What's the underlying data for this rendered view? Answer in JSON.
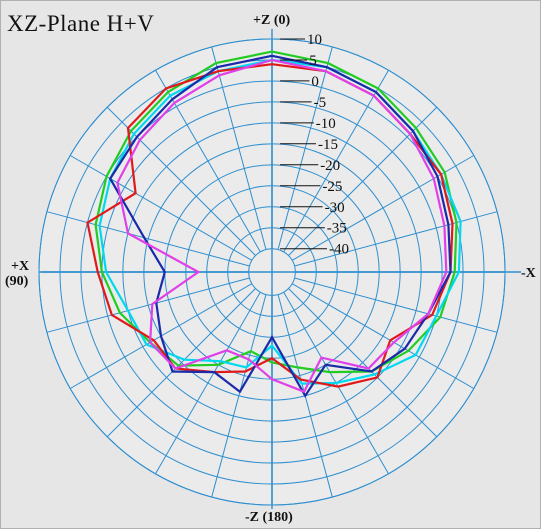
{
  "title": "XZ-Plane   H+V",
  "axis_labels": {
    "top": "+Z (0)",
    "bottom": "-Z (180)",
    "left_line1": "+X",
    "left_line2": "(90)",
    "right": "-X"
  },
  "colors": {
    "background": "#e6e6e6",
    "grid": "#2f8fd0",
    "axis": "#2f8fd0",
    "tick_text": "#111111"
  },
  "chart_data": {
    "type": "line",
    "subtype": "polar",
    "title": "XZ-Plane   H+V",
    "radial_unit": "dB",
    "radial_range": [
      -40,
      10
    ],
    "radial_ticks": [
      10,
      5,
      0,
      -5,
      -10,
      -15,
      -20,
      -25,
      -30,
      -35,
      -40
    ],
    "radial_tick_labels": [
      "10",
      "5",
      "0",
      "-5",
      "-10",
      "-15",
      "-20",
      "-25",
      "-30",
      "-35",
      "-40"
    ],
    "angular_step_deg": 15,
    "angle_zero": "top",
    "angle_direction": "counterclockwise",
    "grid": true,
    "legend": "none",
    "series": [
      {
        "color": "#22cc22",
        "angles": [
          0,
          15,
          30,
          45,
          60,
          75,
          90,
          105,
          120,
          135,
          150,
          165,
          180,
          195,
          210,
          225,
          240,
          255,
          270,
          285,
          300,
          315,
          330,
          345
        ],
        "values": [
          7,
          6,
          4,
          2,
          0,
          -2,
          -5,
          -8,
          -12,
          -14,
          -20,
          -26,
          -24,
          -22,
          -18,
          -12,
          -8,
          -4,
          -2,
          0,
          2,
          3,
          5,
          6
        ]
      },
      {
        "color": "#00d8f0",
        "angles": [
          0,
          15,
          30,
          45,
          60,
          75,
          90,
          105,
          120,
          135,
          150,
          165,
          180,
          195,
          210,
          225,
          240,
          255,
          270,
          285,
          300,
          315,
          330,
          345
        ],
        "values": [
          5,
          4,
          3,
          1,
          -1,
          -3,
          -6,
          -10,
          -11,
          -16,
          -21,
          -22,
          -28,
          -18,
          -15,
          -11,
          -6,
          -5,
          -1,
          1,
          1,
          2,
          4,
          5
        ]
      },
      {
        "color": "#e01a1a",
        "angles": [
          0,
          15,
          30,
          45,
          60,
          75,
          90,
          105,
          120,
          135,
          150,
          165,
          180,
          195,
          210,
          225,
          240,
          255,
          270,
          285,
          300,
          315,
          330,
          345
        ],
        "values": [
          4,
          4,
          5,
          3,
          -8,
          0,
          -4,
          -6,
          -13,
          -13,
          -18,
          -21,
          -25,
          -19,
          -14,
          -10,
          -13,
          -6,
          -3,
          -1,
          1,
          1,
          3,
          4
        ]
      },
      {
        "color": "#1a2aa8",
        "angles": [
          0,
          15,
          30,
          45,
          60,
          75,
          90,
          105,
          120,
          135,
          150,
          165,
          180,
          195,
          210,
          225,
          240,
          255,
          270,
          285,
          300,
          315,
          330,
          345
        ],
        "values": [
          6,
          5,
          2,
          0,
          -1,
          -14,
          -20,
          -17,
          -15,
          -12,
          -18,
          -16,
          -30,
          -15,
          -20,
          -12,
          -9,
          -7,
          -3,
          -2,
          0,
          2,
          4,
          5
        ]
      },
      {
        "color": "#e040e8",
        "angles": [
          0,
          15,
          30,
          45,
          60,
          75,
          90,
          105,
          120,
          135,
          150,
          165,
          180,
          195,
          210,
          225,
          240,
          255,
          270,
          285,
          300,
          315,
          330,
          345
        ],
        "values": [
          5,
          3,
          1,
          -1,
          -3,
          -10,
          -28,
          -16,
          -12,
          -13,
          -24,
          -24,
          -20,
          -16,
          -22,
          -13,
          -12,
          -7,
          -4,
          -3,
          -1,
          1,
          3,
          4
        ]
      }
    ]
  }
}
